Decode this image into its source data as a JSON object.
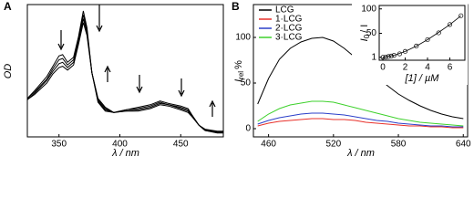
{
  "chart_data": [
    {
      "type": "line",
      "panel": "A",
      "ylabel": "OD",
      "xlabel": "λ / nm",
      "color": "#000000",
      "xlim": [
        324,
        485
      ],
      "xticks": [
        350,
        400,
        450
      ],
      "ylim": [
        0,
        1.03
      ],
      "x": [
        324,
        330,
        340,
        345,
        350,
        353,
        357,
        362,
        366,
        370,
        373,
        377,
        382,
        388,
        395,
        405,
        415,
        425,
        433,
        440,
        450,
        456,
        460,
        465,
        470,
        480,
        485
      ],
      "series": [
        {
          "values": [
            0.3,
            0.36,
            0.47,
            0.55,
            0.63,
            0.64,
            0.58,
            0.62,
            0.78,
            0.98,
            0.85,
            0.5,
            0.27,
            0.2,
            0.19,
            0.21,
            0.23,
            0.25,
            0.28,
            0.26,
            0.24,
            0.22,
            0.16,
            0.09,
            0.05,
            0.03,
            0.03
          ]
        },
        {
          "values": [
            0.3,
            0.35,
            0.45,
            0.53,
            0.6,
            0.61,
            0.56,
            0.6,
            0.76,
            0.95,
            0.83,
            0.5,
            0.28,
            0.21,
            0.19,
            0.21,
            0.22,
            0.24,
            0.27,
            0.25,
            0.23,
            0.21,
            0.16,
            0.09,
            0.05,
            0.035,
            0.035
          ]
        },
        {
          "values": [
            0.29,
            0.34,
            0.44,
            0.51,
            0.57,
            0.58,
            0.54,
            0.58,
            0.74,
            0.92,
            0.81,
            0.5,
            0.29,
            0.22,
            0.19,
            0.2,
            0.21,
            0.23,
            0.26,
            0.25,
            0.22,
            0.2,
            0.15,
            0.09,
            0.055,
            0.04,
            0.04
          ]
        },
        {
          "values": [
            0.29,
            0.33,
            0.42,
            0.49,
            0.54,
            0.55,
            0.52,
            0.56,
            0.72,
            0.89,
            0.79,
            0.5,
            0.3,
            0.23,
            0.19,
            0.2,
            0.2,
            0.22,
            0.25,
            0.24,
            0.21,
            0.19,
            0.15,
            0.09,
            0.06,
            0.045,
            0.045
          ]
        }
      ]
    },
    {
      "type": "line",
      "panel": "B",
      "ylabel": "I",
      "ylabel_sub": "rel",
      "ylabel_unit": "%",
      "xlabel": "λ / nm",
      "xlim": [
        446,
        644
      ],
      "xticks": [
        460,
        520,
        580,
        640
      ],
      "ylim": [
        -9,
        136
      ],
      "yticks": [
        0,
        50,
        100
      ],
      "legend": "upper left",
      "x": [
        450,
        460,
        470,
        480,
        490,
        500,
        510,
        520,
        530,
        540,
        550,
        560,
        570,
        580,
        590,
        600,
        610,
        620,
        630,
        640
      ],
      "series": [
        {
          "name": "LCG",
          "color": "#000000",
          "values": [
            27,
            55,
            76,
            88,
            95,
            99,
            100,
            96,
            88,
            78,
            67,
            57,
            47,
            38,
            31,
            25,
            20,
            16,
            13,
            11
          ]
        },
        {
          "name": "1·LCG",
          "color": "#e8302a",
          "values": [
            3,
            6,
            8,
            9,
            10,
            11,
            11,
            10,
            10,
            9,
            7,
            6,
            5,
            4,
            3,
            3,
            2,
            2,
            1,
            1
          ]
        },
        {
          "name": "2·LCG",
          "color": "#2b3fc9",
          "values": [
            5,
            9,
            12,
            14,
            16,
            17,
            17,
            16,
            15,
            13,
            11,
            9,
            8,
            6,
            5,
            4,
            3,
            3,
            2,
            2
          ]
        },
        {
          "name": "3·LCG",
          "color": "#3ed12c",
          "values": [
            8,
            16,
            22,
            26,
            28,
            30,
            30,
            29,
            26,
            23,
            20,
            17,
            14,
            11,
            9,
            7,
            6,
            5,
            4,
            3
          ]
        }
      ]
    },
    {
      "type": "scatter",
      "ylabel": "I",
      "ylabel_sub": "0",
      "ylabel_unit": "/ I",
      "xlabel": "[1] / µM",
      "xlim": [
        -0.33,
        7.35
      ],
      "xticks": [
        0,
        2,
        4,
        6
      ],
      "ylim": [
        -5,
        107
      ],
      "yticks": [
        1,
        50,
        100
      ],
      "series": [
        {
          "mode": "markers",
          "color": "#000000",
          "x": [
            0,
            0.25,
            0.5,
            0.75,
            1,
            1.5,
            2,
            3,
            4,
            5,
            6,
            7
          ],
          "values": [
            1,
            1.5,
            2.5,
            3.5,
            5,
            8,
            13,
            24,
            37,
            51,
            68,
            86
          ]
        },
        {
          "mode": "lines",
          "color": "#000000",
          "x": [
            0,
            1,
            2,
            3,
            4,
            5,
            6,
            7
          ],
          "values": [
            1,
            5,
            13,
            24,
            37,
            52,
            68,
            86
          ]
        }
      ]
    }
  ]
}
